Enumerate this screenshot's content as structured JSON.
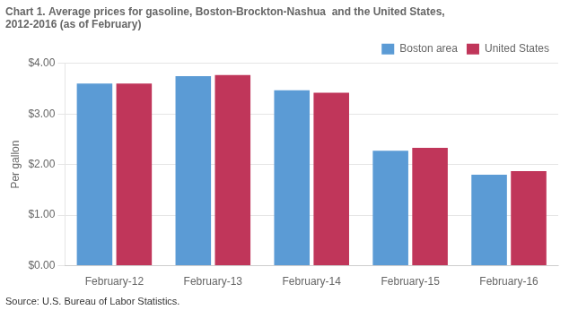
{
  "chart_data": {
    "type": "bar",
    "title": [
      "Chart 1. Average prices for gasoline, Boston-Brockton-Nashua  and the United States,",
      "2012-2016 (as of February)"
    ],
    "ylabel": "Per gallon",
    "annotations": [
      "Source: U.S. Bureau of Labor Statistics."
    ],
    "categories": [
      "February-12",
      "February-13",
      "February-14",
      "February-15",
      "February-16"
    ],
    "series": [
      {
        "name": "Boston area",
        "color": "#5B9BD5",
        "values": [
          3.6,
          3.75,
          3.47,
          2.27,
          1.8
        ]
      },
      {
        "name": "United States",
        "color": "#C0365A",
        "values": [
          3.6,
          3.77,
          3.42,
          2.33,
          1.87
        ]
      }
    ],
    "ylim": [
      0,
      4.0
    ],
    "yticks": [
      {
        "value": 0.0,
        "label": "$0.00"
      },
      {
        "value": 1.0,
        "label": "$1.00"
      },
      {
        "value": 2.0,
        "label": "$2.00"
      },
      {
        "value": 3.0,
        "label": "$3.00"
      },
      {
        "value": 4.0,
        "label": "$4.00"
      }
    ],
    "grid": true,
    "legend": "upper right"
  }
}
